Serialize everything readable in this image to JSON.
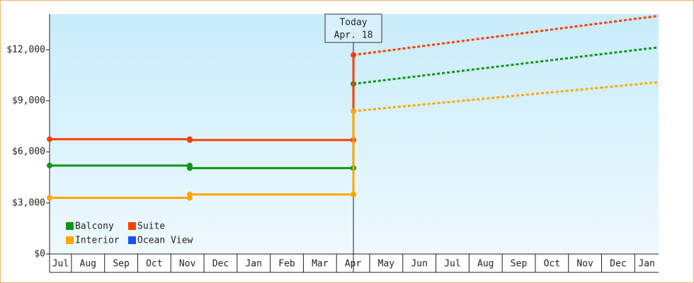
{
  "chart_data": {
    "type": "line",
    "xlim": [
      0.34,
      18.72
    ],
    "xticks": [
      {
        "value": 0,
        "label": "Jul"
      },
      {
        "value": 1,
        "label": "Aug"
      },
      {
        "value": 2,
        "label": "Sep"
      },
      {
        "value": 3,
        "label": "Oct"
      },
      {
        "value": 4,
        "label": "Nov"
      },
      {
        "value": 5,
        "label": "Dec"
      },
      {
        "value": 6,
        "label": "Jan"
      },
      {
        "value": 7,
        "label": "Feb"
      },
      {
        "value": 8,
        "label": "Mar"
      },
      {
        "value": 9,
        "label": "Apr"
      },
      {
        "value": 10,
        "label": "May"
      },
      {
        "value": 11,
        "label": "Jun"
      },
      {
        "value": 12,
        "label": "Jul"
      },
      {
        "value": 13,
        "label": "Aug"
      },
      {
        "value": 14,
        "label": "Sep"
      },
      {
        "value": 15,
        "label": "Oct"
      },
      {
        "value": 16,
        "label": "Nov"
      },
      {
        "value": 17,
        "label": "Dec"
      },
      {
        "value": 18,
        "label": "Jan"
      }
    ],
    "ylim": [
      0,
      14100
    ],
    "yticks": [
      {
        "value": 0,
        "label": "$0"
      },
      {
        "value": 3000,
        "label": "$3,000"
      },
      {
        "value": 6000,
        "label": "$6,000"
      },
      {
        "value": 9000,
        "label": "$9,000"
      },
      {
        "value": 12000,
        "label": "$12,000"
      }
    ],
    "today": {
      "x": 9.51,
      "label": [
        "Today",
        "Apr. 18"
      ]
    },
    "series": [
      {
        "name": "Balcony",
        "color": "#109618",
        "x": [
          0.34,
          4.57,
          4.57,
          9.51,
          9.51
        ],
        "values": [
          5200,
          5200,
          5050,
          5050,
          10000
        ],
        "forecast": {
          "x": [
            9.51,
            18.72
          ],
          "values": [
            10000,
            12150
          ]
        }
      },
      {
        "name": "Suite",
        "color": "#ff3d00",
        "x": [
          0.34,
          4.57,
          4.57,
          9.51,
          9.51
        ],
        "values": [
          6750,
          6750,
          6700,
          6700,
          11700
        ],
        "forecast": {
          "x": [
            9.51,
            18.72
          ],
          "values": [
            11700,
            14000
          ]
        }
      },
      {
        "name": "Interior",
        "color": "#ffa500",
        "x": [
          0.34,
          4.57,
          4.57,
          9.51,
          9.51
        ],
        "values": [
          3300,
          3300,
          3500,
          3500,
          8400
        ],
        "forecast": {
          "x": [
            9.51,
            18.72
          ],
          "values": [
            8400,
            10100
          ]
        }
      },
      {
        "name": "Ocean View",
        "color": "#1a4fff",
        "x": [],
        "values": [],
        "forecast": {
          "x": [],
          "values": []
        }
      }
    ]
  }
}
